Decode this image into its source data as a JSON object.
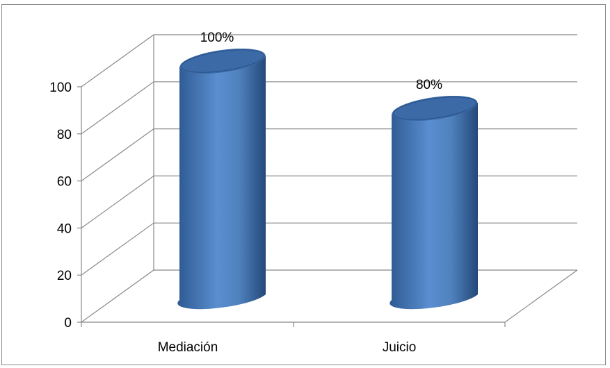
{
  "chart_data": {
    "type": "bar",
    "style": "3d-cylinder",
    "categories": [
      "Mediación",
      "Juicio"
    ],
    "values": [
      100,
      80
    ],
    "data_labels": [
      "100%",
      "80%"
    ],
    "ylim": [
      0,
      100
    ],
    "yticks": [
      "0",
      "20",
      "40",
      "60",
      "80",
      "100"
    ],
    "grid": true,
    "legend": "none",
    "colors": {
      "bar_side": "#4F81BD",
      "bar_dark": "#2F5C94",
      "bar_top": "#3B6AA6",
      "grid": "#888888"
    }
  }
}
